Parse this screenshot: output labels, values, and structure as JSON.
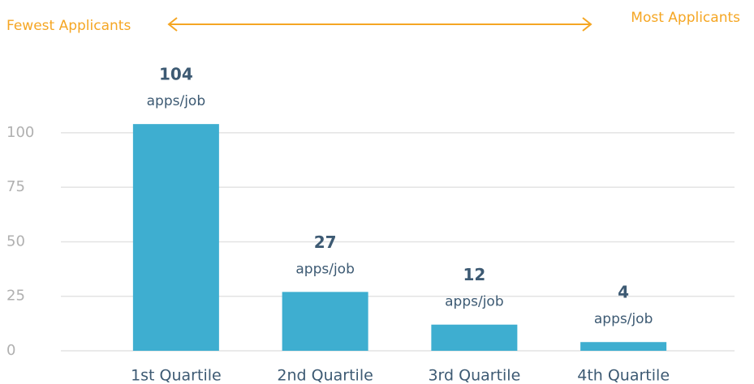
{
  "chart_data": {
    "type": "bar",
    "annotations": [
      "Fewest Applicants",
      "Most Applicants"
    ],
    "categories": [
      "1st Quartile",
      "2nd Quartile",
      "3rd Quartile",
      "4th Quartile"
    ],
    "values": [
      104,
      27,
      12,
      4
    ],
    "data_label_unit": "apps/job",
    "color": "#3eaed0",
    "ylim": [
      0,
      110
    ],
    "yticks": [
      0,
      25,
      50,
      75,
      100
    ],
    "grid": true
  }
}
